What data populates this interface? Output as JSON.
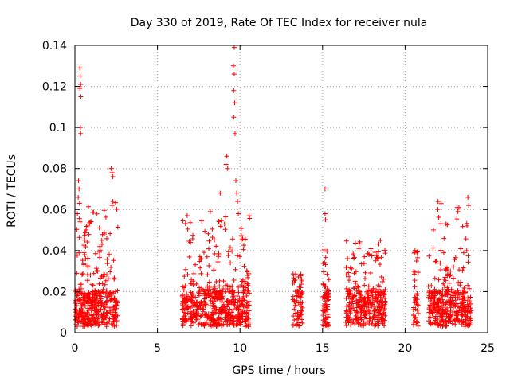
{
  "chart_data": {
    "type": "scatter",
    "title": "Day 330 of 2019, Rate Of TEC Index for receiver nula",
    "xlabel": "GPS time / hours",
    "ylabel": "ROTI / TECUs",
    "xlim": [
      0,
      25
    ],
    "ylim": [
      0,
      0.14
    ],
    "grid": true,
    "marker": "+",
    "color": "#ff0000",
    "x_ticks": [
      "0",
      "5",
      "10",
      "15",
      "20",
      "25"
    ],
    "x_tick_values": [
      0,
      5,
      10,
      15,
      20,
      25
    ],
    "y_ticks": [
      "0",
      "0.02",
      "0.04",
      "0.06",
      "0.08",
      "0.1",
      "0.12",
      "0.14"
    ],
    "y_tick_values": [
      0,
      0.02,
      0.04,
      0.06,
      0.08,
      0.1,
      0.12,
      0.14
    ],
    "clusters": [
      {
        "x_start": 0.0,
        "x_end": 2.6,
        "y_base_max": 0.02,
        "y_peak": 0.064,
        "count": 420
      },
      {
        "x_start": 6.5,
        "x_end": 10.6,
        "y_base_max": 0.02,
        "y_peak": 0.059,
        "count": 560
      },
      {
        "x_start": 13.2,
        "x_end": 13.8,
        "y_base_max": 0.02,
        "y_peak": 0.03,
        "count": 70
      },
      {
        "x_start": 15.0,
        "x_end": 15.4,
        "y_base_max": 0.02,
        "y_peak": 0.045,
        "count": 70
      },
      {
        "x_start": 16.4,
        "x_end": 18.8,
        "y_base_max": 0.02,
        "y_peak": 0.045,
        "count": 330
      },
      {
        "x_start": 20.5,
        "x_end": 20.8,
        "y_base_max": 0.015,
        "y_peak": 0.04,
        "count": 40
      },
      {
        "x_start": 21.4,
        "x_end": 24.0,
        "y_base_max": 0.02,
        "y_peak": 0.066,
        "count": 380
      }
    ],
    "outliers": [
      {
        "x": 0.3,
        "y": 0.129
      },
      {
        "x": 0.32,
        "y": 0.125
      },
      {
        "x": 0.35,
        "y": 0.121
      },
      {
        "x": 0.3,
        "y": 0.119
      },
      {
        "x": 0.36,
        "y": 0.115
      },
      {
        "x": 0.33,
        "y": 0.1
      },
      {
        "x": 0.35,
        "y": 0.097
      },
      {
        "x": 0.22,
        "y": 0.074
      },
      {
        "x": 0.25,
        "y": 0.07
      },
      {
        "x": 0.2,
        "y": 0.066
      },
      {
        "x": 0.28,
        "y": 0.063
      },
      {
        "x": 0.15,
        "y": 0.058
      },
      {
        "x": 2.2,
        "y": 0.08
      },
      {
        "x": 2.25,
        "y": 0.078
      },
      {
        "x": 2.3,
        "y": 0.076
      },
      {
        "x": 2.3,
        "y": 0.064
      },
      {
        "x": 2.25,
        "y": 0.062
      },
      {
        "x": 9.65,
        "y": 0.139
      },
      {
        "x": 9.6,
        "y": 0.13
      },
      {
        "x": 9.65,
        "y": 0.126
      },
      {
        "x": 9.62,
        "y": 0.118
      },
      {
        "x": 9.68,
        "y": 0.112
      },
      {
        "x": 9.62,
        "y": 0.105
      },
      {
        "x": 9.7,
        "y": 0.097
      },
      {
        "x": 9.2,
        "y": 0.086
      },
      {
        "x": 9.15,
        "y": 0.082
      },
      {
        "x": 9.25,
        "y": 0.08
      },
      {
        "x": 9.75,
        "y": 0.074
      },
      {
        "x": 9.8,
        "y": 0.068
      },
      {
        "x": 9.85,
        "y": 0.064
      },
      {
        "x": 8.8,
        "y": 0.068
      },
      {
        "x": 9.9,
        "y": 0.058
      },
      {
        "x": 15.15,
        "y": 0.07
      },
      {
        "x": 15.15,
        "y": 0.058
      },
      {
        "x": 15.18,
        "y": 0.055
      },
      {
        "x": 23.8,
        "y": 0.066
      },
      {
        "x": 23.85,
        "y": 0.062
      },
      {
        "x": 23.15,
        "y": 0.061
      },
      {
        "x": 23.2,
        "y": 0.059
      },
      {
        "x": 23.75,
        "y": 0.052
      },
      {
        "x": 18.5,
        "y": 0.045
      },
      {
        "x": 17.2,
        "y": 0.041
      },
      {
        "x": 20.6,
        "y": 0.04
      },
      {
        "x": 6.8,
        "y": 0.057
      },
      {
        "x": 8.2,
        "y": 0.059
      }
    ]
  }
}
